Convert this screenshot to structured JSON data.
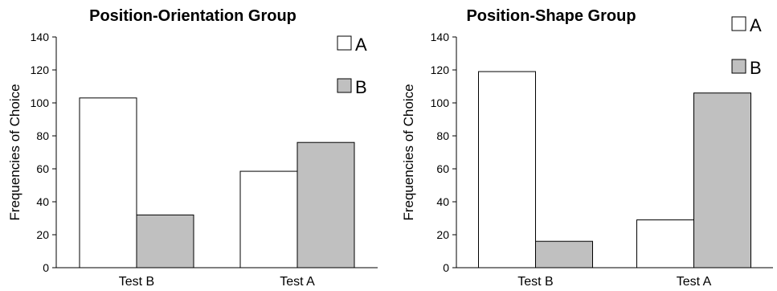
{
  "chart_data": [
    {
      "type": "bar",
      "title": "Position-Orientation Group",
      "ylabel": "Frequencies of Choice",
      "xlabel": "",
      "categories": [
        "Test B",
        "Test A"
      ],
      "yticks": [
        "0",
        "20",
        "40",
        "60",
        "80",
        "100",
        "120",
        "140"
      ],
      "ylim": [
        0,
        140
      ],
      "series": [
        {
          "name": "A",
          "values": [
            103,
            58.5
          ]
        },
        {
          "name": "B",
          "values": [
            32,
            76
          ]
        }
      ],
      "colors": {
        "A": "#ffffff",
        "B": "#c0c0c0"
      },
      "grid": false,
      "legend": "top-right"
    },
    {
      "type": "bar",
      "title": "Position-Shape Group",
      "ylabel": "Frequencies of Choice",
      "xlabel": "",
      "categories": [
        "Test B",
        "Test A"
      ],
      "yticks": [
        "0",
        "20",
        "40",
        "60",
        "80",
        "100",
        "120",
        "140"
      ],
      "ylim": [
        0,
        140
      ],
      "series": [
        {
          "name": "A",
          "values": [
            119,
            29
          ]
        },
        {
          "name": "B",
          "values": [
            16,
            106
          ]
        }
      ],
      "colors": {
        "A": "#ffffff",
        "B": "#c0c0c0"
      },
      "grid": false,
      "legend": "top-right"
    }
  ]
}
